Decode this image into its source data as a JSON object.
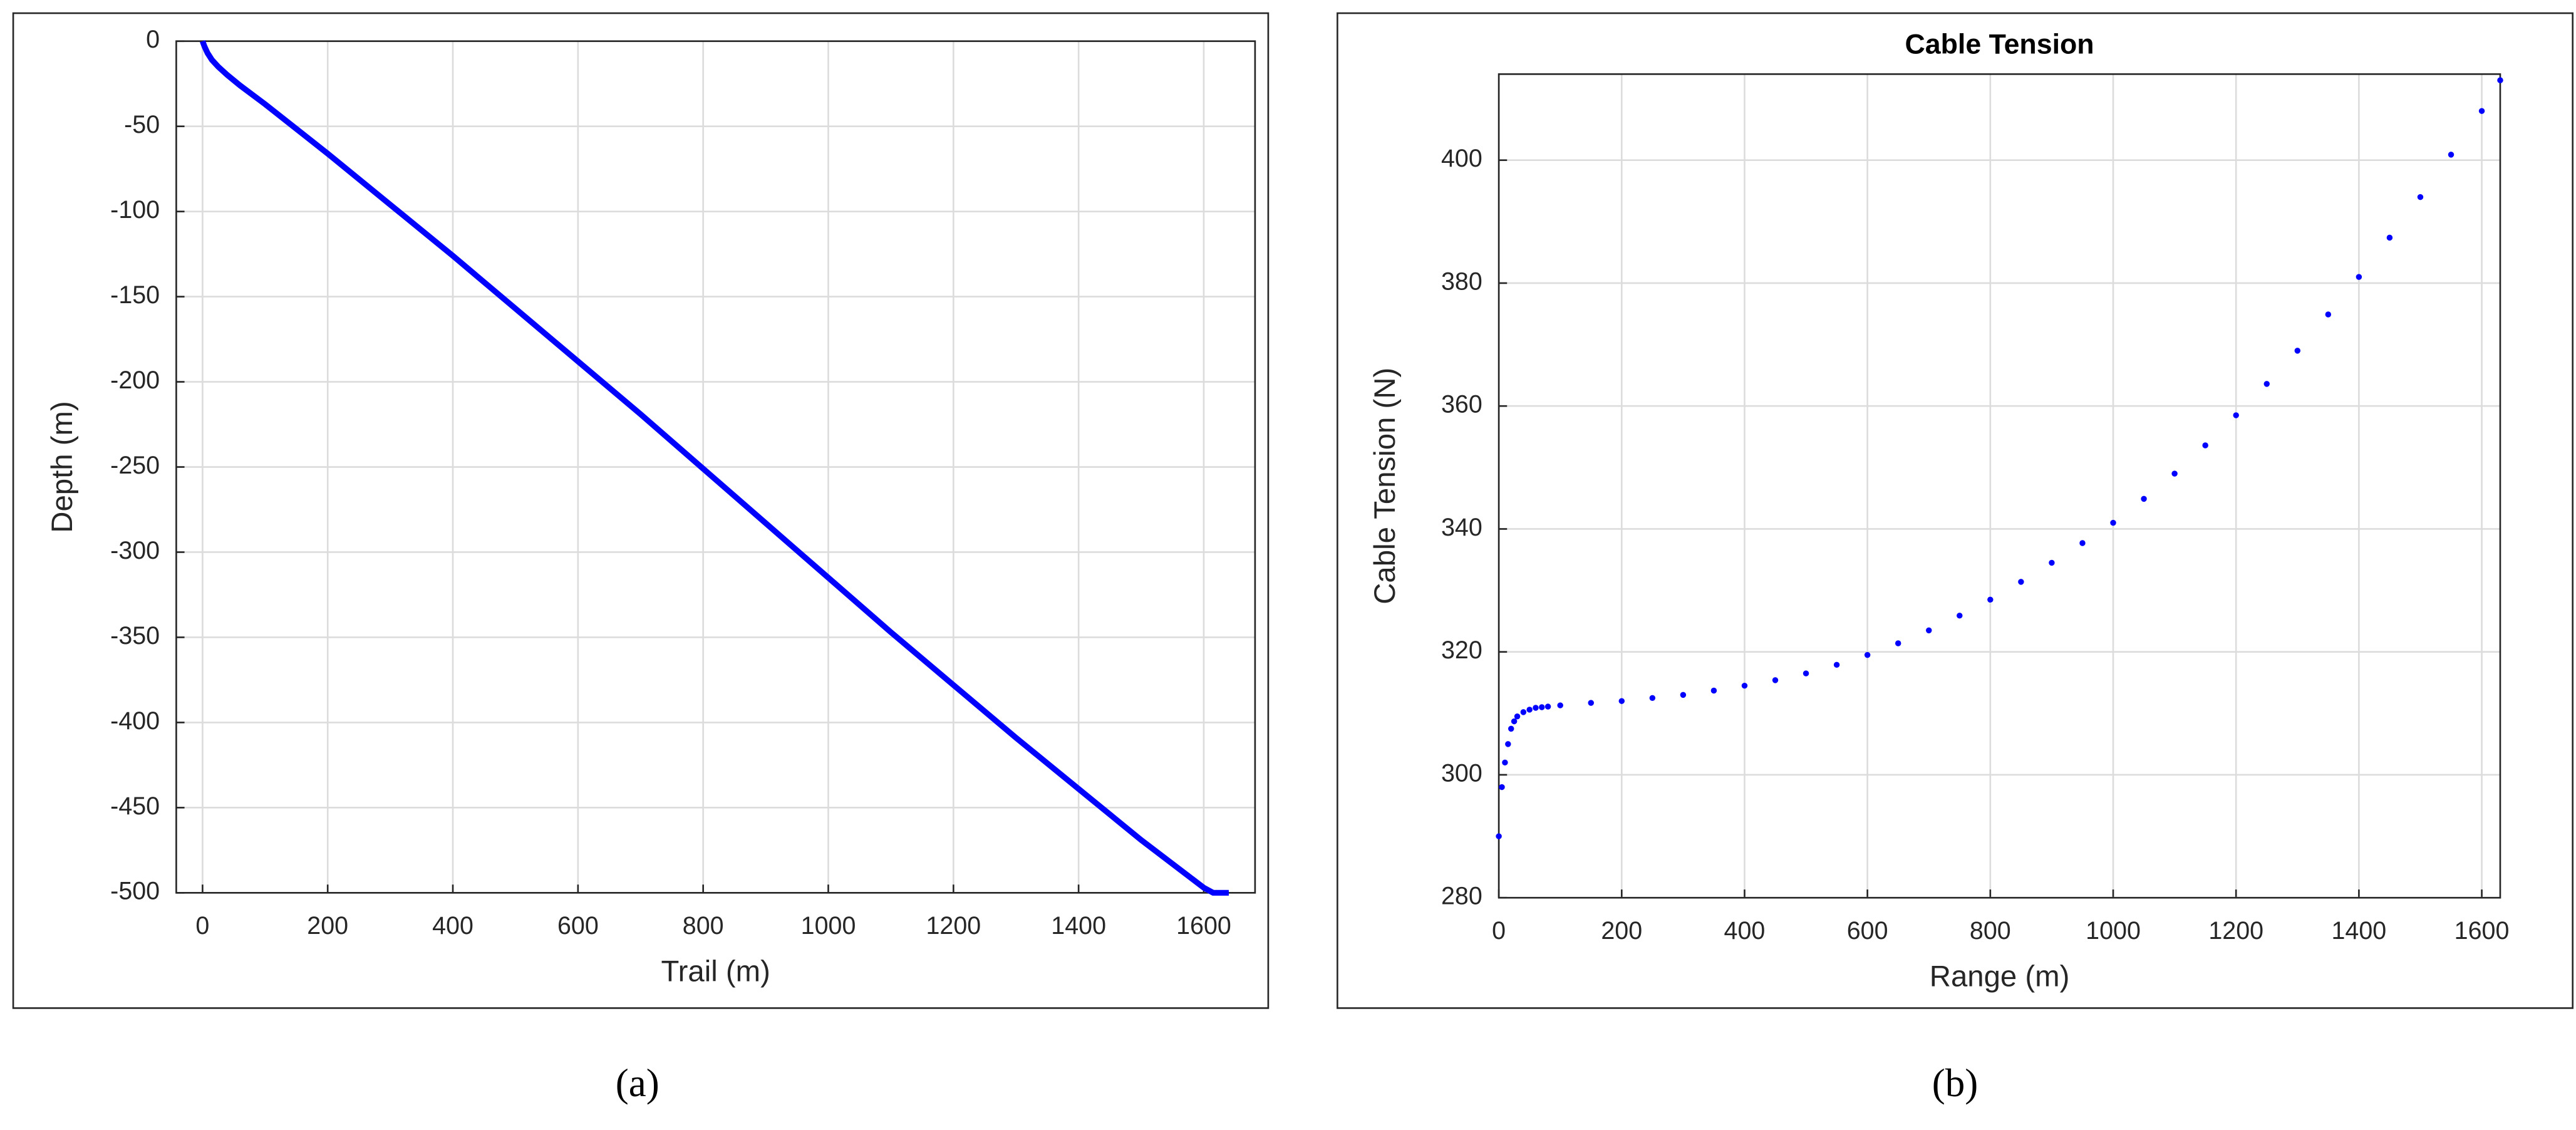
{
  "chart_data": [
    {
      "type": "line",
      "xlabel": "Trail (m)",
      "ylabel": "Depth (m)",
      "color": "#0000ff",
      "grid": true,
      "xlim": [
        -42,
        1682
      ],
      "ylim": [
        -500,
        0
      ],
      "xticks": [
        0,
        200,
        400,
        600,
        800,
        1000,
        1200,
        1400,
        1600
      ],
      "yticks": [
        0,
        -50,
        -100,
        -150,
        -200,
        -250,
        -300,
        -350,
        -400,
        -450,
        -500
      ],
      "caption": "(a)",
      "x": [
        0,
        3,
        8,
        15,
        25,
        40,
        60,
        100,
        200,
        300,
        400,
        500,
        600,
        700,
        800,
        900,
        1000,
        1100,
        1200,
        1300,
        1400,
        1500,
        1600,
        1615,
        1640
      ],
      "values": [
        0,
        -3,
        -7,
        -11,
        -15,
        -20,
        -26,
        -37,
        -66,
        -96,
        -126,
        -157,
        -188,
        -219,
        -251,
        -283,
        -315,
        -347,
        -378,
        -409,
        -439,
        -469,
        -497,
        -500,
        -500
      ]
    },
    {
      "type": "scatter",
      "title": "Cable Tension",
      "xlabel": "Range (m)",
      "ylabel": "Cable Tension (N)",
      "color": "#0000ff",
      "grid": true,
      "xlim": [
        0,
        1630
      ],
      "ylim": [
        280,
        414
      ],
      "xticks": [
        0,
        200,
        400,
        600,
        800,
        1000,
        1200,
        1400,
        1600
      ],
      "yticks": [
        280,
        300,
        320,
        340,
        360,
        380,
        400
      ],
      "caption": "(b)",
      "x": [
        0,
        5,
        10,
        15,
        20,
        25,
        30,
        40,
        50,
        60,
        70,
        80,
        100,
        150,
        200,
        250,
        300,
        350,
        400,
        450,
        500,
        550,
        600,
        650,
        700,
        750,
        800,
        850,
        900,
        950,
        1000,
        1050,
        1100,
        1150,
        1200,
        1250,
        1300,
        1350,
        1400,
        1450,
        1500,
        1550,
        1600,
        1630
      ],
      "values": [
        290,
        298,
        302,
        305,
        307.5,
        308.7,
        309.5,
        310.2,
        310.6,
        310.9,
        311,
        311.1,
        311.3,
        311.7,
        312,
        312.5,
        313,
        313.7,
        314.5,
        315.4,
        316.5,
        317.9,
        319.5,
        321.4,
        323.5,
        325.9,
        328.5,
        331.4,
        334.5,
        337.7,
        341,
        344.9,
        349,
        353.6,
        358.5,
        363.6,
        369,
        374.9,
        381,
        387.4,
        394,
        400.9,
        408,
        413
      ]
    }
  ]
}
